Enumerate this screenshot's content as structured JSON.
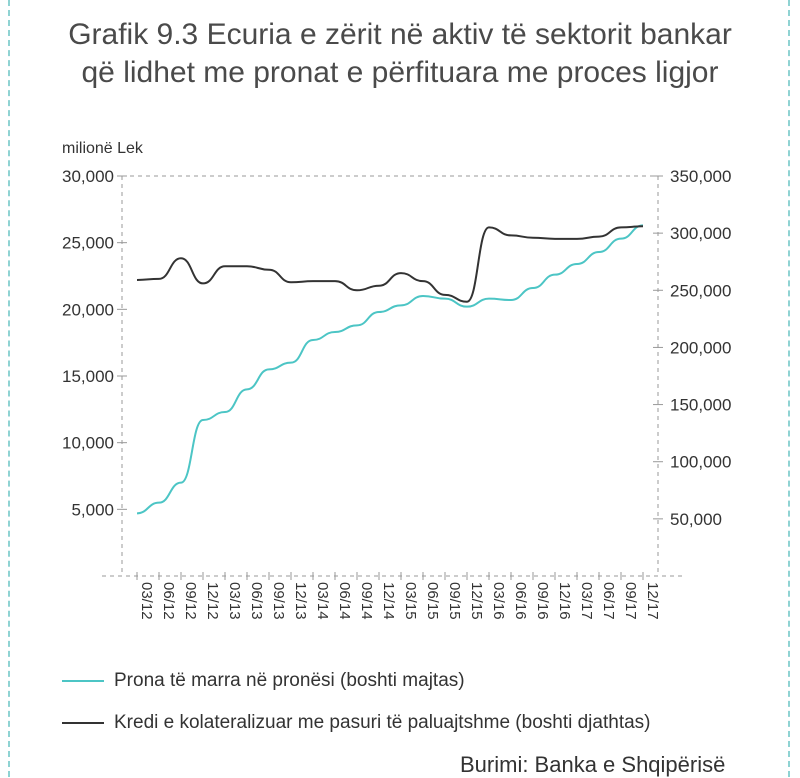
{
  "title_line1": "Grafik 9.3 Ecuria e zërit në aktiv të sektorit bankar",
  "title_line2": "që lidhet me pronat e përfituara me proces ligjor",
  "unit_label": "milionë Lek",
  "source": "Burimi: Banka e Shqipërisë",
  "colors": {
    "series1": "#4cc5c5",
    "series2": "#333333",
    "grid": "#999999"
  },
  "chart_data": {
    "type": "line",
    "title": "Grafik 9.3 Ecuria e zërit në aktiv të sektorit bankar që lidhet me pronat e përfituara me proces ligjor",
    "x": [
      "03/12",
      "06/12",
      "09/12",
      "12/12",
      "03/13",
      "06/13",
      "09/13",
      "12/13",
      "03/14",
      "06/14",
      "09/14",
      "12/14",
      "03/15",
      "06/15",
      "09/15",
      "12/15",
      "03/16",
      "06/16",
      "09/16",
      "12/16",
      "03/17",
      "06/17",
      "09/17",
      "12/17"
    ],
    "left_axis": {
      "label": "milionë Lek",
      "ylim": [
        0,
        30000
      ],
      "ticks": [
        "5,000",
        "10,000",
        "15,000",
        "20,000",
        "25,000",
        "30,000"
      ],
      "tick_values": [
        5000,
        10000,
        15000,
        20000,
        25000,
        30000
      ]
    },
    "right_axis": {
      "ylim": [
        0,
        350000
      ],
      "ticks": [
        "50,000",
        "100,000",
        "150,000",
        "200,000",
        "250,000",
        "300,000",
        "350,000"
      ],
      "tick_values": [
        50000,
        100000,
        150000,
        200000,
        250000,
        300000,
        350000
      ]
    },
    "series": [
      {
        "name": "Prona të marra në pronësi (boshti majtas)",
        "axis": "left",
        "values": [
          4700,
          5500,
          7000,
          11700,
          12300,
          14000,
          15500,
          16000,
          17700,
          18300,
          18800,
          19800,
          20300,
          21000,
          20800,
          20200,
          20800,
          20700,
          21600,
          22600,
          23400,
          24300,
          25300,
          26300
        ]
      },
      {
        "name": "Kredi e kolateralizuar me pasuri të paluajtshme (boshti djathtas)",
        "axis": "right",
        "values": [
          259000,
          260000,
          278000,
          256000,
          271000,
          271000,
          268000,
          257000,
          258000,
          258000,
          250000,
          254000,
          265000,
          258000,
          246000,
          240000,
          305000,
          298000,
          296000,
          295000,
          295000,
          297000,
          305000,
          306000
        ]
      }
    ],
    "grid": false,
    "legend_position": "bottom"
  }
}
